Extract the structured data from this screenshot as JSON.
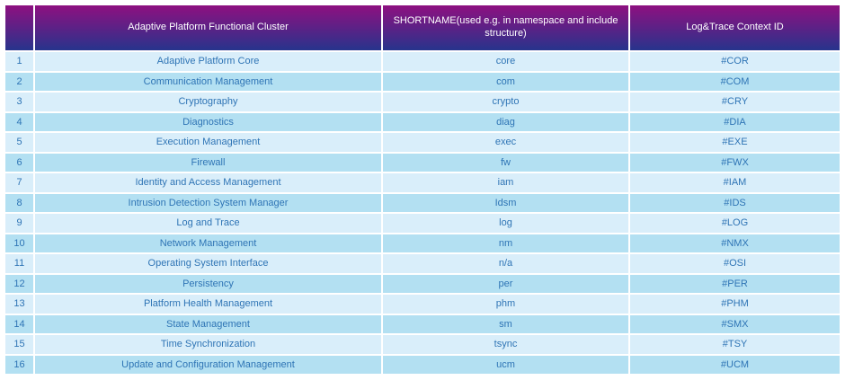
{
  "colors": {
    "header_gradient_top": "#8e1080",
    "header_gradient_bottom": "#27348c",
    "header_text": "#ffffff",
    "row_light": "#d9eefa",
    "row_dark": "#b3e0f2",
    "body_text": "#2e74b5",
    "separator": "#ffffff"
  },
  "table": {
    "columns": [
      {
        "label": ""
      },
      {
        "label": "Adaptive Platform Functional Cluster"
      },
      {
        "label": "SHORTNAME(used e.g. in namespace and include structure)"
      },
      {
        "label": "Log&Trace Context ID"
      }
    ],
    "rows": [
      {
        "num": "1",
        "cluster": "Adaptive Platform Core",
        "shortname": "core",
        "context_id": "#COR"
      },
      {
        "num": "2",
        "cluster": "Communication Management",
        "shortname": "com",
        "context_id": "#COM"
      },
      {
        "num": "3",
        "cluster": "Cryptography",
        "shortname": "crypto",
        "context_id": "#CRY"
      },
      {
        "num": "4",
        "cluster": "Diagnostics",
        "shortname": "diag",
        "context_id": "#DIA"
      },
      {
        "num": "5",
        "cluster": "Execution Management",
        "shortname": "exec",
        "context_id": "#EXE"
      },
      {
        "num": "6",
        "cluster": "Firewall",
        "shortname": "fw",
        "context_id": "#FWX"
      },
      {
        "num": "7",
        "cluster": "Identity and Access Management",
        "shortname": "iam",
        "context_id": "#IAM"
      },
      {
        "num": "8",
        "cluster": "Intrusion Detection System Manager",
        "shortname": "Idsm",
        "context_id": "#IDS"
      },
      {
        "num": "9",
        "cluster": "Log and Trace",
        "shortname": "log",
        "context_id": "#LOG"
      },
      {
        "num": "10",
        "cluster": "Network Management",
        "shortname": "nm",
        "context_id": "#NMX"
      },
      {
        "num": "11",
        "cluster": "Operating System Interface",
        "shortname": "n/a",
        "context_id": "#OSI"
      },
      {
        "num": "12",
        "cluster": "Persistency",
        "shortname": "per",
        "context_id": "#PER"
      },
      {
        "num": "13",
        "cluster": "Platform Health Management",
        "shortname": "phm",
        "context_id": "#PHM"
      },
      {
        "num": "14",
        "cluster": "State Management",
        "shortname": "sm",
        "context_id": "#SMX"
      },
      {
        "num": "15",
        "cluster": "Time Synchronization",
        "shortname": "tsync",
        "context_id": "#TSY"
      },
      {
        "num": "16",
        "cluster": "Update and Configuration Management",
        "shortname": "ucm",
        "context_id": "#UCM"
      }
    ]
  }
}
